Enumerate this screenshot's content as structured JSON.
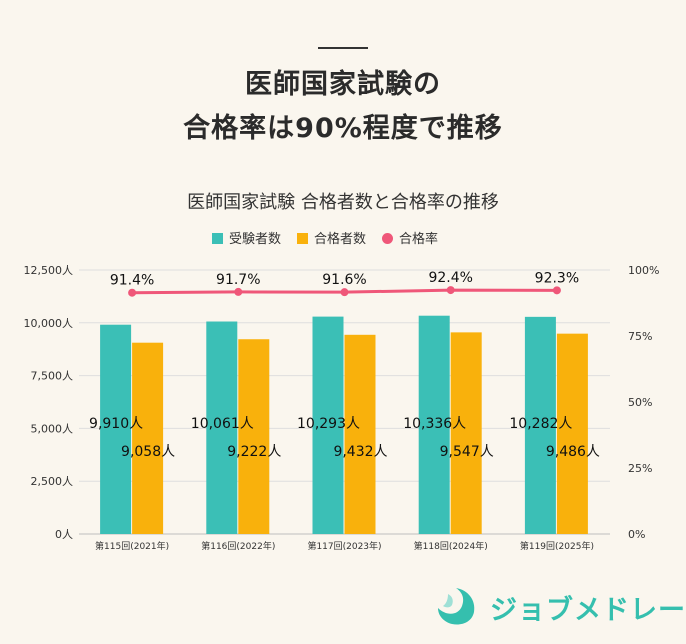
{
  "headline": {
    "line1": "医師国家試験の",
    "line2": "合格率は90%程度で推移"
  },
  "colors": {
    "examinees": "#3bbfb6",
    "passers": "#f9b10c",
    "pass_rate": "#ef5779",
    "background": "#faf6ee",
    "logo": "#35bfae"
  },
  "chart_data": {
    "type": "bar",
    "title": "医師国家試験  合格者数と合格率の推移",
    "categories": [
      "第115回(2021年)",
      "第116回(2022年)",
      "第117回(2023年)",
      "第118回(2024年)",
      "第119回(2025年)"
    ],
    "series": [
      {
        "name": "受験者数",
        "type": "bar",
        "axis": "left",
        "values": [
          9910,
          10061,
          10293,
          10336,
          10282
        ],
        "labels": [
          "9,910人",
          "10,061人",
          "10,293人",
          "10,336人",
          "10,282人"
        ]
      },
      {
        "name": "合格者数",
        "type": "bar",
        "axis": "left",
        "values": [
          9058,
          9222,
          9432,
          9547,
          9486
        ],
        "labels": [
          "9,058人",
          "9,222人",
          "9,432人",
          "9,547人",
          "9,486人"
        ]
      },
      {
        "name": "合格率",
        "type": "line",
        "axis": "right",
        "values": [
          91.4,
          91.7,
          91.6,
          92.4,
          92.3
        ],
        "labels": [
          "91.4%",
          "91.7%",
          "91.6%",
          "92.4%",
          "92.3%"
        ]
      }
    ],
    "y_left": {
      "min": 0,
      "max": 12500,
      "ticks": [
        "0人",
        "2,500人",
        "5,000人",
        "7,500人",
        "10,000人",
        "12,500人"
      ]
    },
    "y_right": {
      "min": 0,
      "max": 100,
      "ticks": [
        "0%",
        "25%",
        "50%",
        "75%",
        "100%"
      ]
    },
    "grid": true,
    "legend": "top-center"
  },
  "brand": {
    "name": "ジョブメドレー"
  }
}
